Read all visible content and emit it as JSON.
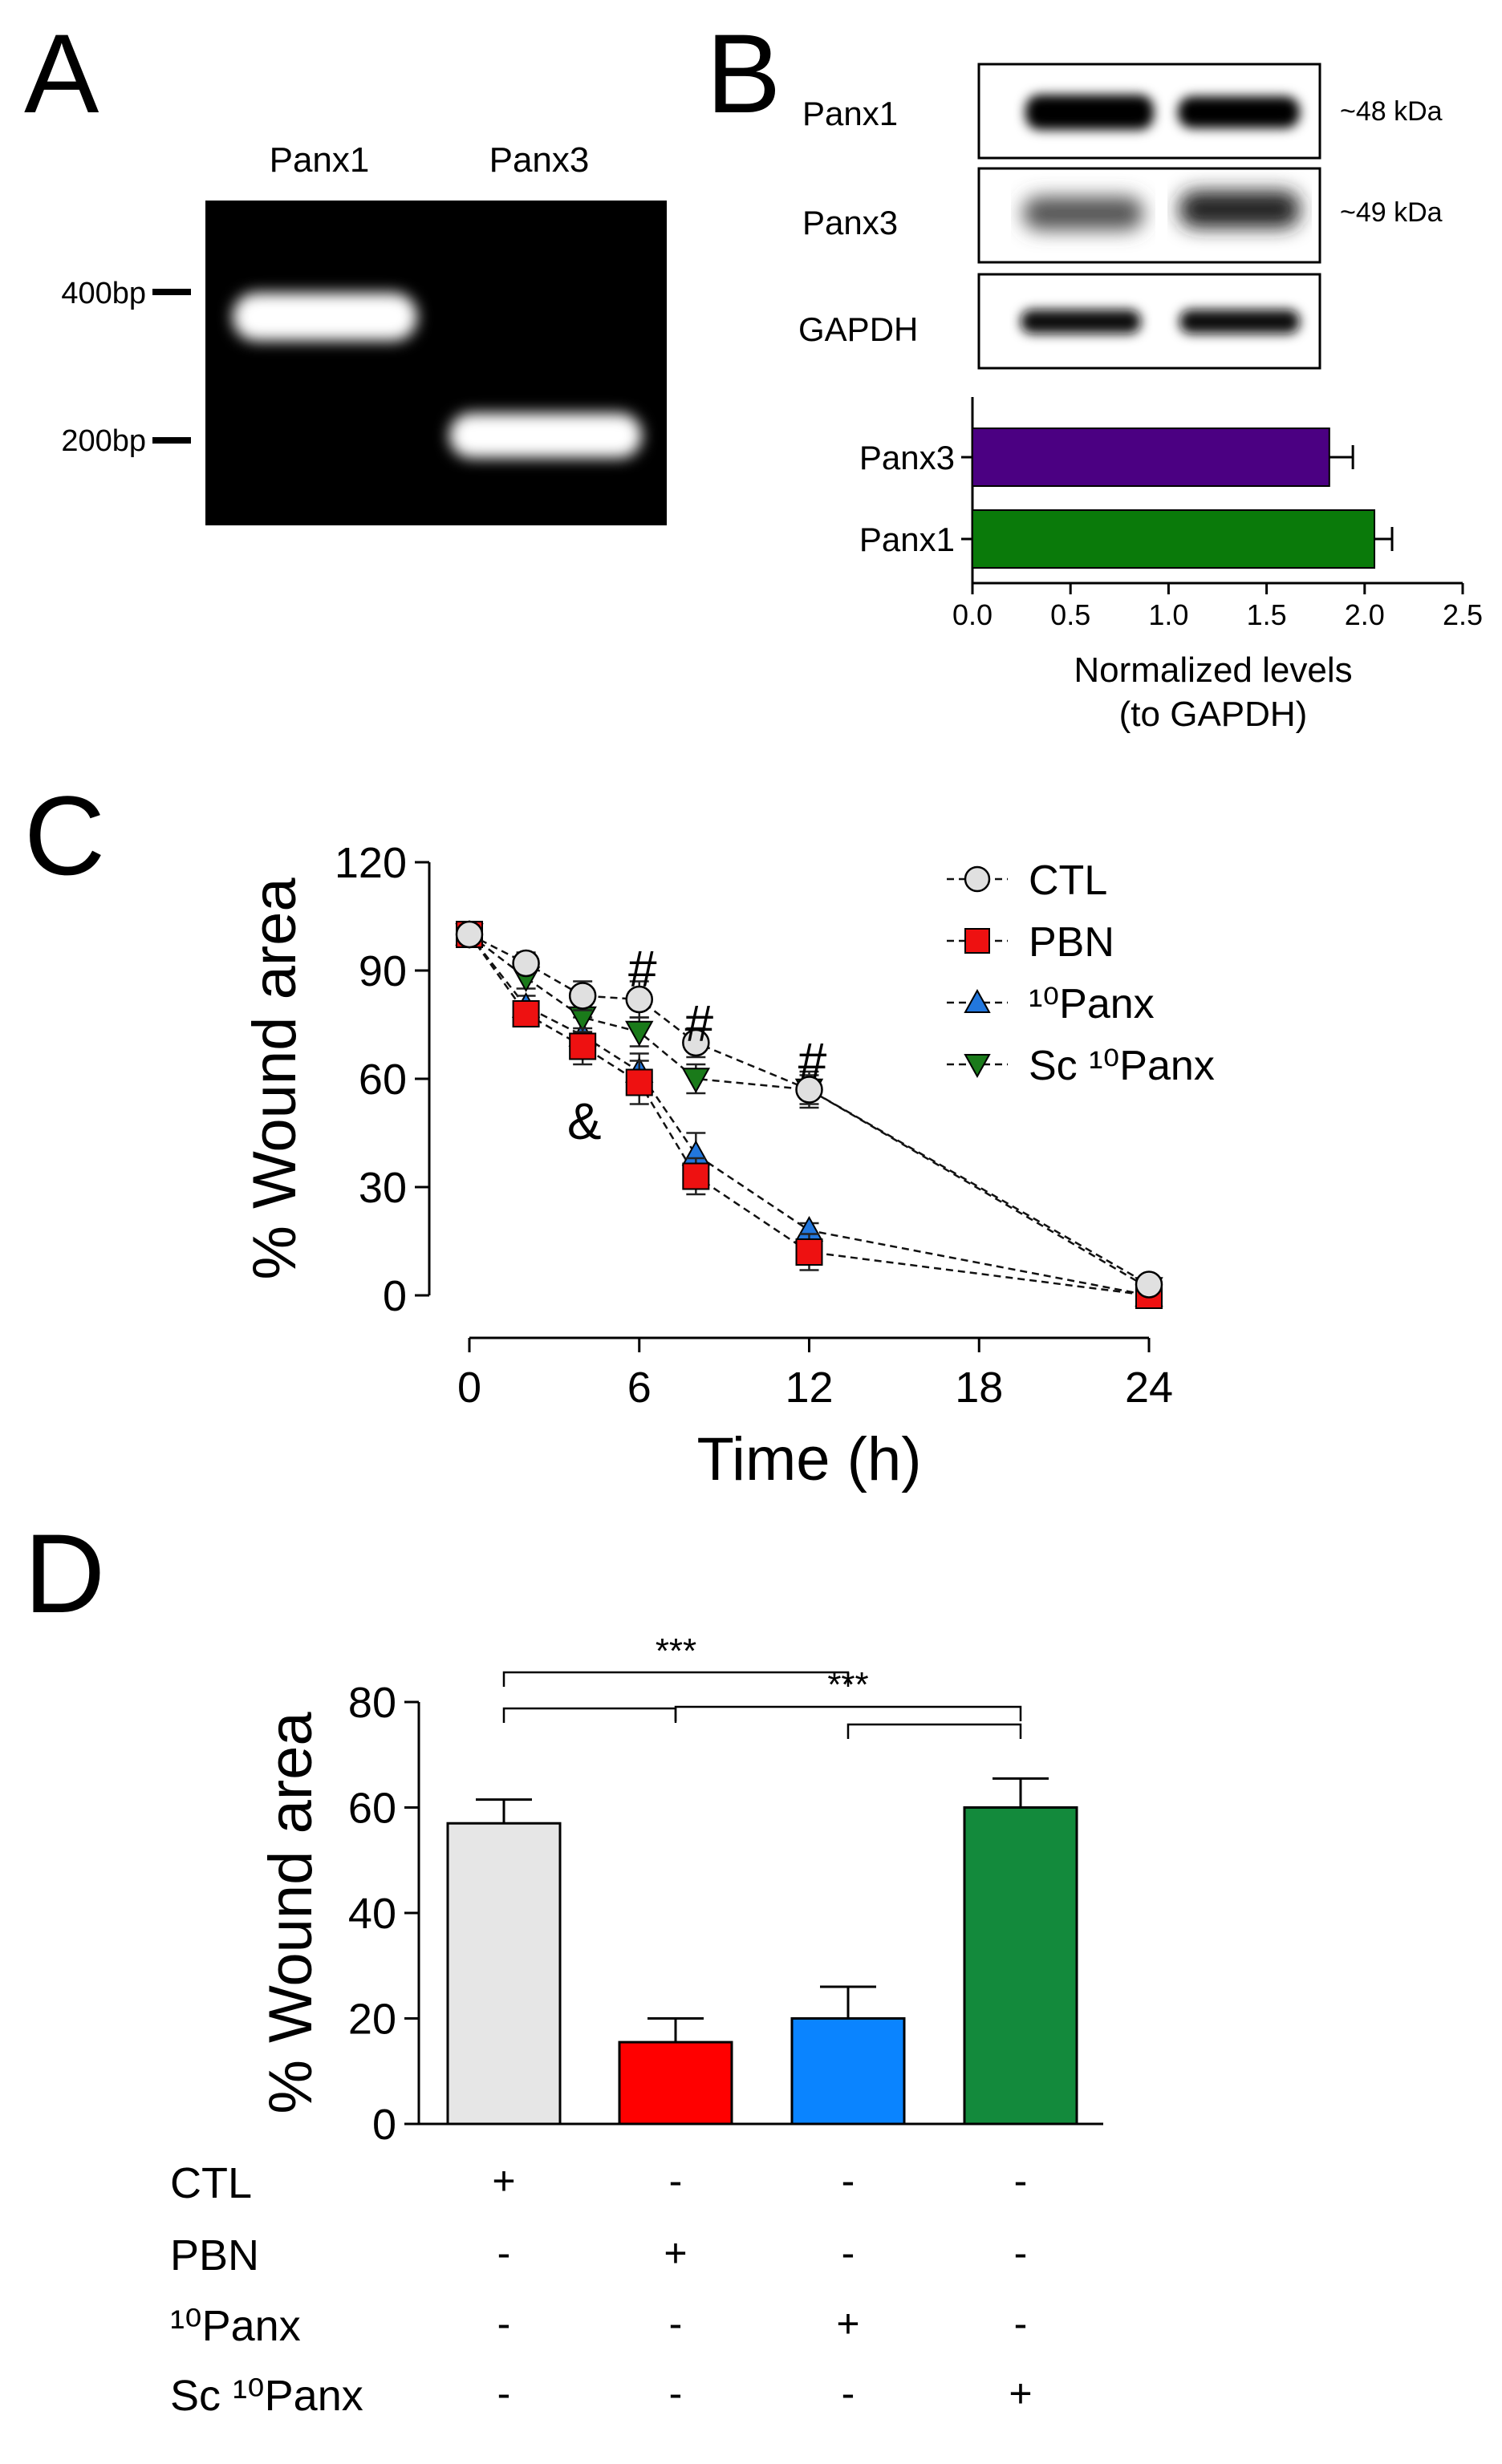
{
  "panels": {
    "a": "A",
    "b": "B",
    "c": "C",
    "d": "D"
  },
  "gel": {
    "lanes": [
      "Panx1",
      "Panx3"
    ],
    "markers": [
      "400bp",
      "200bp"
    ]
  },
  "blot": {
    "rows": [
      {
        "label": "Panx1",
        "size": "~48 kDa"
      },
      {
        "label": "Panx3",
        "size": "~49 kDa"
      },
      {
        "label": "GAPDH",
        "size": ""
      }
    ]
  },
  "chart_data": [
    {
      "id": "B",
      "type": "bar",
      "orientation": "horizontal",
      "categories": [
        "Panx3",
        "Panx1"
      ],
      "values": [
        1.82,
        2.05
      ],
      "errors": [
        0.12,
        0.09
      ],
      "colors": [
        "#4b0082",
        "#0a7a0a"
      ],
      "xlim": [
        0,
        2.5
      ],
      "xticks": [
        "0.0",
        "0.5",
        "1.0",
        "1.5",
        "2.0",
        "2.5"
      ],
      "xlabel": [
        "Normalized levels",
        "(to GAPDH)"
      ]
    },
    {
      "id": "C",
      "type": "line",
      "x": [
        0,
        2,
        4,
        6,
        8,
        12,
        24
      ],
      "series": [
        {
          "name": "CTL",
          "marker": "circle",
          "color": "#e0e0e0",
          "values": [
            100,
            92,
            83,
            82,
            70,
            57,
            3
          ],
          "errors": [
            0,
            3,
            4,
            5,
            4,
            5,
            1
          ]
        },
        {
          "name": "PBN",
          "marker": "square",
          "color": "#ee1111",
          "values": [
            100,
            78,
            69,
            59,
            33,
            12,
            0
          ],
          "errors": [
            0,
            3,
            5,
            6,
            5,
            5,
            0
          ]
        },
        {
          "name": "¹⁰Panx",
          "marker": "triangle-up",
          "color": "#2277dd",
          "values": [
            100,
            80,
            72,
            62,
            39,
            18,
            0
          ],
          "errors": [
            0,
            3,
            5,
            5,
            6,
            2,
            0
          ]
        },
        {
          "name": "Sc ¹⁰Panx",
          "marker": "triangle-down",
          "color": "#1a7a1a",
          "values": [
            100,
            88,
            77,
            73,
            60,
            57,
            2
          ],
          "errors": [
            0,
            3,
            4,
            4,
            4,
            4,
            1
          ]
        }
      ],
      "xticks": [
        "0",
        "6",
        "12",
        "18",
        "24"
      ],
      "xtick_values": [
        0,
        6,
        12,
        18,
        24
      ],
      "xlim": [
        0,
        24
      ],
      "ylim": [
        0,
        120
      ],
      "yticks": [
        "0",
        "30",
        "60",
        "90",
        "120"
      ],
      "xlabel": "Time (h)",
      "ylabel": "% Wound area",
      "annotations": [
        {
          "text": "#",
          "x": 6
        },
        {
          "text": "#",
          "x": 8
        },
        {
          "text": "#",
          "x": 12
        },
        {
          "text": "&",
          "x": 4
        }
      ]
    },
    {
      "id": "D",
      "type": "bar",
      "categories": [
        "CTL",
        "PBN",
        "¹⁰Panx",
        "Sc ¹⁰Panx"
      ],
      "values": [
        57,
        15.5,
        20,
        60
      ],
      "errors": [
        4.5,
        4.5,
        6,
        5.5
      ],
      "colors": [
        "#e6e6e6",
        "#ff0000",
        "#0a84ff",
        "#138a3c"
      ],
      "ylim": [
        0,
        80
      ],
      "yticks": [
        "0",
        "20",
        "40",
        "60",
        "80"
      ],
      "ylabel": "% Wound area",
      "significance": [
        {
          "from": "CTL",
          "to": "PBN",
          "label": ""
        },
        {
          "from": "CTL",
          "to": "¹⁰Panx",
          "label": "***"
        },
        {
          "from": "PBN",
          "to": "Sc ¹⁰Panx",
          "label": "***"
        },
        {
          "from": "¹⁰Panx",
          "to": "Sc ¹⁰Panx",
          "label": ""
        }
      ],
      "treatment_table": {
        "rows": [
          "CTL",
          "PBN",
          "¹⁰Panx",
          "Sc ¹⁰Panx"
        ],
        "cells": [
          [
            "+",
            "-",
            "-",
            "-"
          ],
          [
            "-",
            "+",
            "-",
            "-"
          ],
          [
            "-",
            "-",
            "+",
            "-"
          ],
          [
            "-",
            "-",
            "-",
            "+"
          ]
        ]
      }
    }
  ]
}
